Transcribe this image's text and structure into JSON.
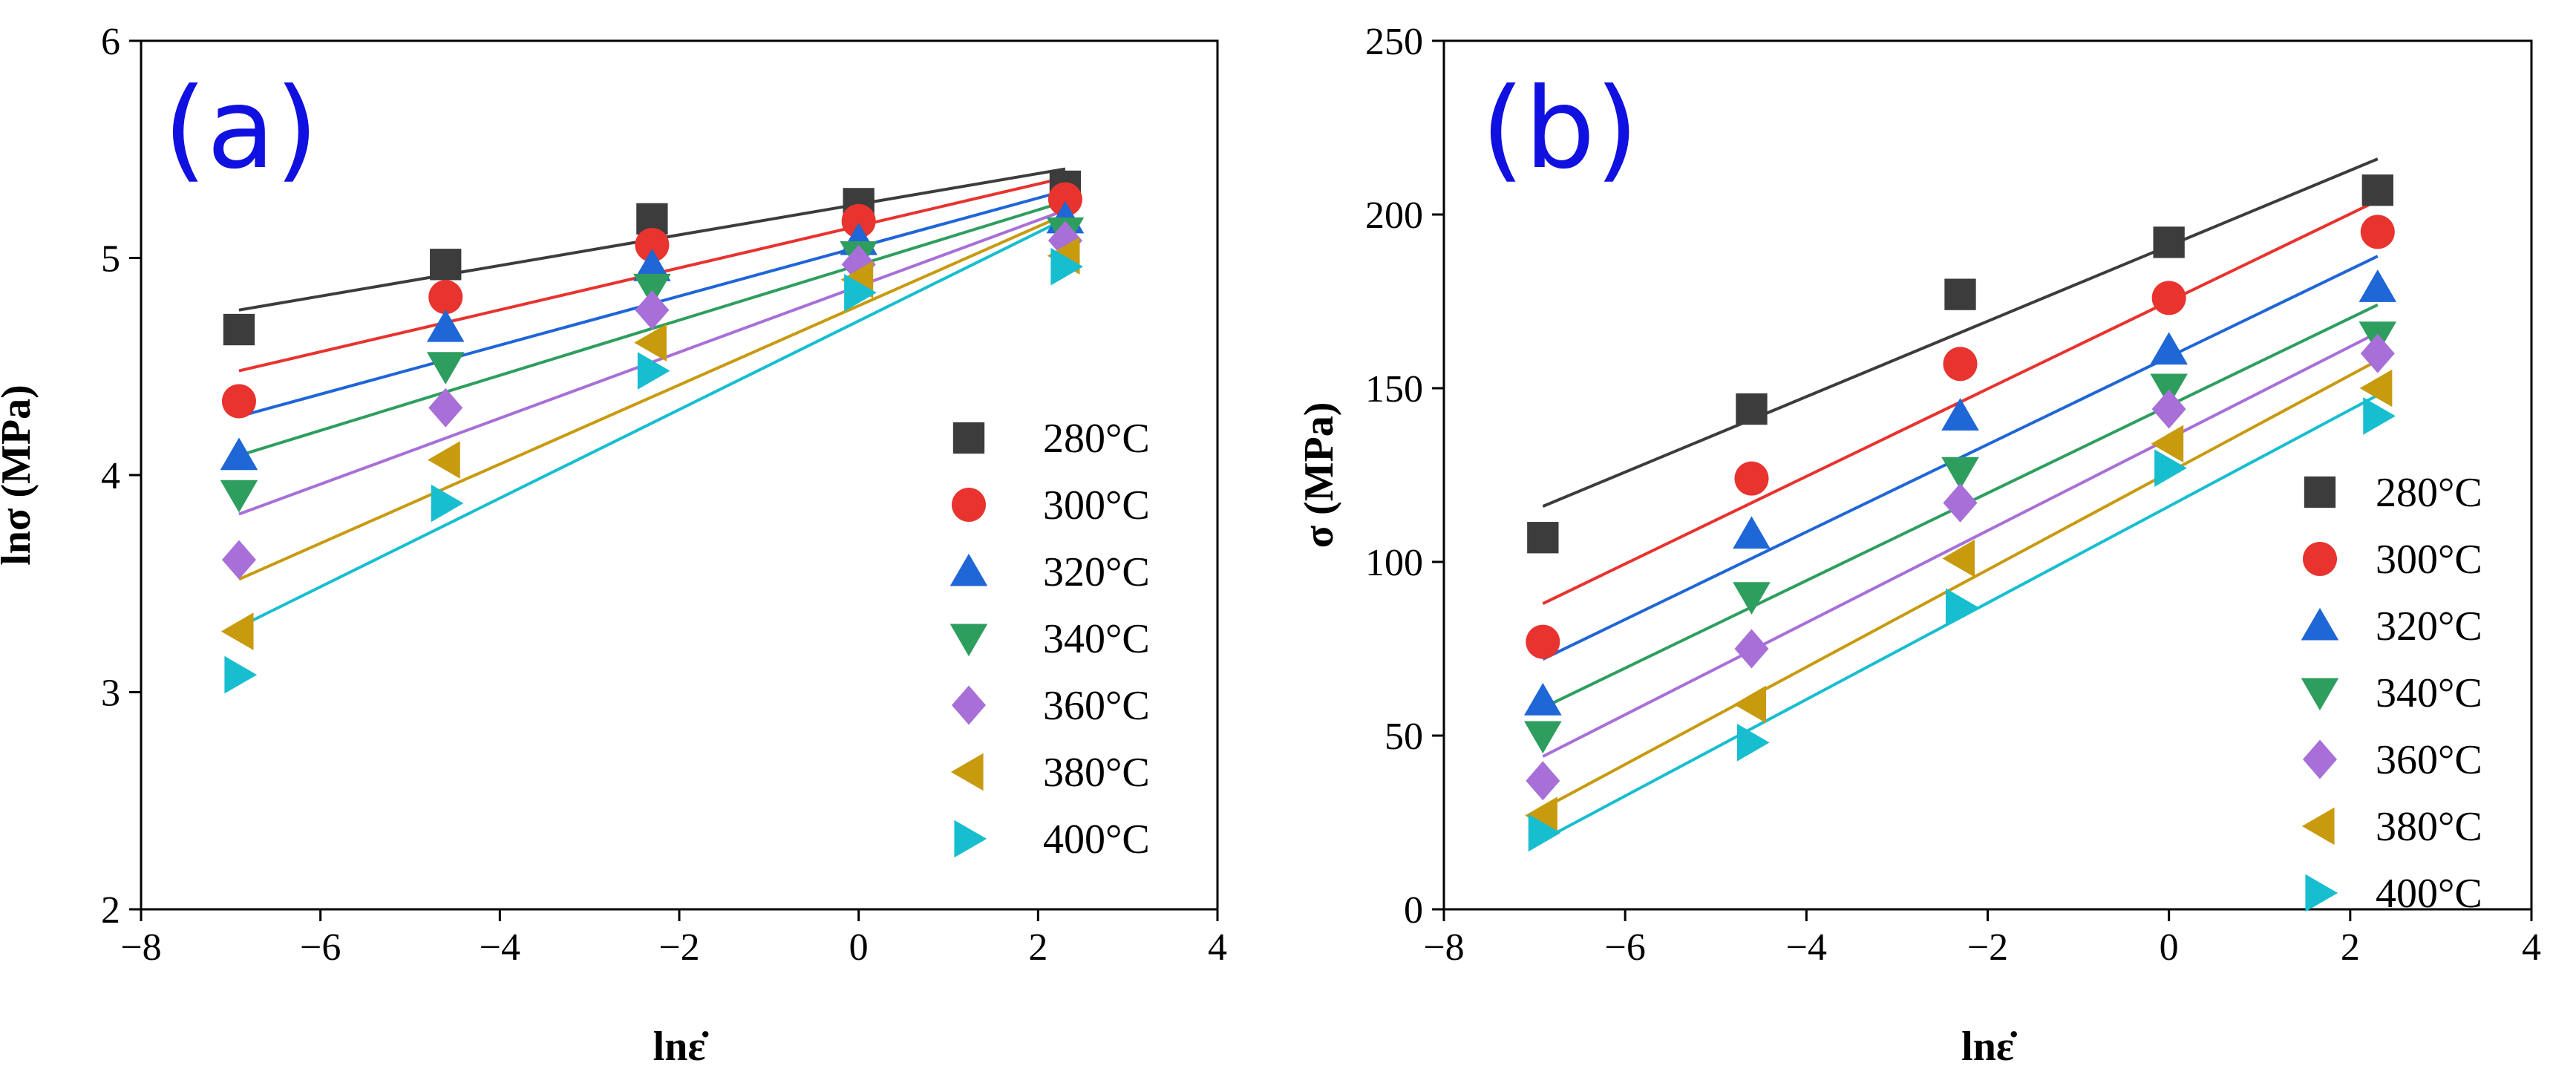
{
  "chart_data": [
    {
      "type": "scatter",
      "panel_label": "(a)",
      "xlabel": "lnε̇",
      "ylabel": "lnσ (MPa)",
      "xlim": [
        -8,
        4
      ],
      "ylim": [
        2,
        6
      ],
      "xticks": [
        -8,
        -6,
        -4,
        -2,
        0,
        2,
        4
      ],
      "xtick_labels": [
        "−8",
        "−6",
        "−4",
        "−2",
        "0",
        "2",
        "4"
      ],
      "yticks": [
        2,
        3,
        4,
        5,
        6
      ],
      "ytick_labels": [
        "2",
        "3",
        "4",
        "5",
        "6"
      ],
      "legend_position": "right",
      "x": [
        -6.908,
        -4.605,
        -2.303,
        0,
        2.303
      ],
      "series": [
        {
          "name": "280°C",
          "marker": "square",
          "color": "#3c3c3c",
          "values": [
            4.67,
            4.97,
            5.18,
            5.25,
            5.33
          ],
          "fit": [
            4.76,
            5.41
          ]
        },
        {
          "name": "300°C",
          "marker": "circle",
          "color": "#e8332e",
          "values": [
            4.34,
            4.82,
            5.06,
            5.17,
            5.27
          ],
          "fit": [
            4.48,
            5.37
          ]
        },
        {
          "name": "320°C",
          "marker": "triangle-up",
          "color": "#1f66d6",
          "values": [
            4.09,
            4.68,
            4.96,
            5.08,
            5.18
          ],
          "fit": [
            4.27,
            5.31
          ]
        },
        {
          "name": "340°C",
          "marker": "triangle-down",
          "color": "#2e9e5e",
          "values": [
            3.91,
            4.5,
            4.86,
            5.01,
            5.12
          ],
          "fit": [
            4.09,
            5.26
          ]
        },
        {
          "name": "360°C",
          "marker": "diamond",
          "color": "#a86fd8",
          "values": [
            3.61,
            4.31,
            4.76,
            4.97,
            5.08
          ],
          "fit": [
            3.82,
            5.22
          ]
        },
        {
          "name": "380°C",
          "marker": "triangle-left",
          "color": "#c89a0e",
          "values": [
            3.28,
            4.07,
            4.61,
            4.9,
            5.01
          ],
          "fit": [
            3.52,
            5.2
          ]
        },
        {
          "name": "400°C",
          "marker": "triangle-right",
          "color": "#17becf",
          "values": [
            3.08,
            3.87,
            4.48,
            4.84,
            4.96
          ],
          "fit": [
            3.3,
            5.18
          ]
        }
      ]
    },
    {
      "type": "scatter",
      "panel_label": "(b)",
      "xlabel": "lnε̇",
      "ylabel": "σ (MPa)",
      "xlim": [
        -8,
        4
      ],
      "ylim": [
        0,
        250
      ],
      "xticks": [
        -8,
        -6,
        -4,
        -2,
        0,
        2,
        4
      ],
      "xtick_labels": [
        "−8",
        "−6",
        "−4",
        "−2",
        "0",
        "2",
        "4"
      ],
      "yticks": [
        0,
        50,
        100,
        150,
        200,
        250
      ],
      "ytick_labels": [
        "0",
        "50",
        "100",
        "150",
        "200",
        "250"
      ],
      "legend_position": "right",
      "x": [
        -6.908,
        -4.605,
        -2.303,
        0,
        2.303
      ],
      "series": [
        {
          "name": "280°C",
          "marker": "square",
          "color": "#3c3c3c",
          "values": [
            107,
            144,
            177,
            192,
            207
          ],
          "fit": [
            116,
            216
          ]
        },
        {
          "name": "300°C",
          "marker": "circle",
          "color": "#e8332e",
          "values": [
            77,
            124,
            157,
            176,
            195
          ],
          "fit": [
            88,
            204
          ]
        },
        {
          "name": "320°C",
          "marker": "triangle-up",
          "color": "#1f66d6",
          "values": [
            60,
            108,
            142,
            161,
            179
          ],
          "fit": [
            72,
            188
          ]
        },
        {
          "name": "340°C",
          "marker": "triangle-down",
          "color": "#2e9e5e",
          "values": [
            50,
            90,
            126,
            150,
            165
          ],
          "fit": [
            58,
            174
          ]
        },
        {
          "name": "360°C",
          "marker": "diamond",
          "color": "#a86fd8",
          "values": [
            37,
            75,
            117,
            144,
            160
          ],
          "fit": [
            44,
            166
          ]
        },
        {
          "name": "380°C",
          "marker": "triangle-left",
          "color": "#c89a0e",
          "values": [
            27,
            59,
            101,
            134,
            150
          ],
          "fit": [
            29,
            158
          ]
        },
        {
          "name": "400°C",
          "marker": "triangle-right",
          "color": "#17becf",
          "values": [
            22,
            48,
            87,
            127,
            142
          ],
          "fit": [
            20,
            148
          ]
        }
      ]
    }
  ]
}
